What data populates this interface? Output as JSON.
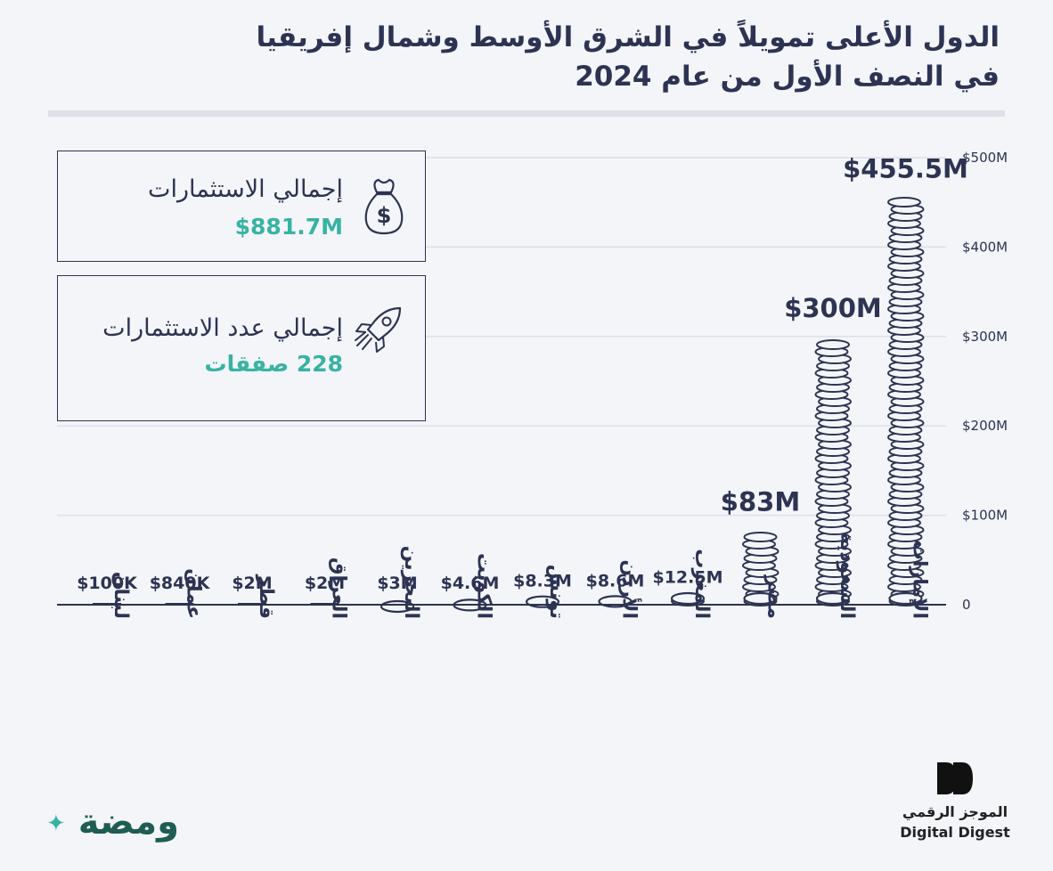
{
  "header": {
    "title_line1": "الدول الأعلى تمويلاً في الشرق الأوسط وشمال إفريقيا",
    "title_line2": "في النصف الأول من عام 2024"
  },
  "cards": {
    "total_investment": {
      "label": "إجمالي الاستثمارات",
      "value": "$881.7M",
      "icon": "money-bag-icon"
    },
    "total_deals": {
      "label": "إجمالي عدد الاستثمارات",
      "value": "228 صفقات",
      "icon": "rocket-icon"
    }
  },
  "branding": {
    "left_logo": "ومضة",
    "right_logo_ar": "الموجز الرقمي",
    "right_logo_en": "Digital Digest"
  },
  "colors": {
    "ink": "#2d3352",
    "accent": "#38b3a3",
    "background": "#f3f5f9",
    "grid": "#dde0e6"
  },
  "chart_data": {
    "type": "bar",
    "bar_style": "coin stacks",
    "categories": [
      "لبنان",
      "عمان",
      "قطر",
      "العراق",
      "البحرين",
      "الكويت",
      "تونس",
      "الأردن",
      "المغرب",
      "مصر",
      "السعودية",
      "الإمارات"
    ],
    "values": [
      0.1,
      0.84,
      2,
      2,
      3,
      4.6,
      8.3,
      8.6,
      12.5,
      83,
      300,
      455.5
    ],
    "data_labels": [
      "$100K",
      "$840K",
      "$2M",
      "$2M",
      "$3M",
      "$4.6M",
      "$8.3M",
      "$8.6M",
      "$12.5M",
      "$83M",
      "$300M",
      "$455.5M"
    ],
    "unit": "millions USD",
    "ylim": [
      0,
      500
    ],
    "yticks": [
      0,
      100,
      200,
      300,
      400,
      500
    ],
    "ytick_labels": [
      "0",
      "$100M",
      "$200M",
      "$300M",
      "$400M",
      "$500M"
    ],
    "y_axis_side": "right",
    "grid": true,
    "legend": "none"
  }
}
